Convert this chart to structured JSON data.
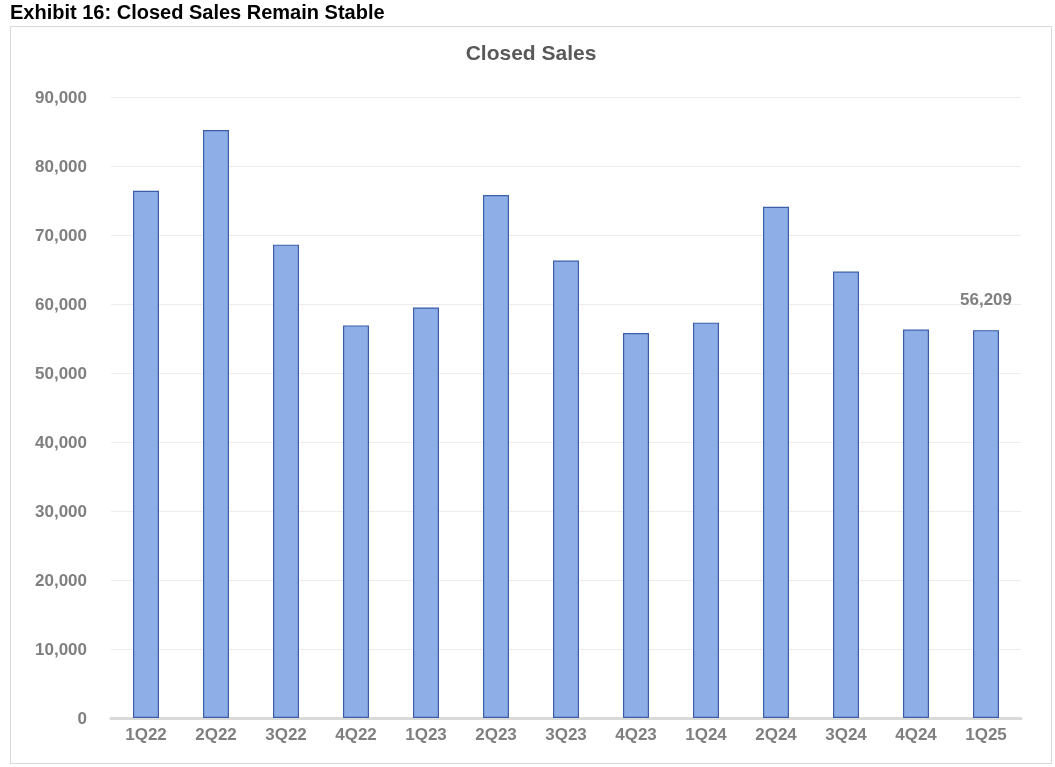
{
  "chart_data": {
    "type": "bar",
    "title": "Exhibit 16: Closed Sales Remain Stable",
    "subtitle": "Closed Sales",
    "categories": [
      "1Q22",
      "2Q22",
      "3Q22",
      "4Q22",
      "1Q23",
      "2Q23",
      "3Q23",
      "4Q23",
      "1Q24",
      "2Q24",
      "3Q24",
      "4Q24",
      "1Q25"
    ],
    "values": [
      76400,
      85200,
      68600,
      56900,
      59500,
      75800,
      66300,
      55800,
      57300,
      74100,
      64700,
      56300,
      56209
    ],
    "value_labels": [
      null,
      null,
      null,
      null,
      null,
      null,
      null,
      null,
      null,
      null,
      null,
      null,
      "56,209"
    ],
    "color": "#8eaee8",
    "ylim": [
      0,
      90000
    ],
    "yticks": [
      {
        "value": 0,
        "label": "0"
      },
      {
        "value": 10000,
        "label": "10,000"
      },
      {
        "value": 20000,
        "label": "20,000"
      },
      {
        "value": 30000,
        "label": "30,000"
      },
      {
        "value": 40000,
        "label": "40,000"
      },
      {
        "value": 50000,
        "label": "50,000"
      },
      {
        "value": 60000,
        "label": "60,000"
      },
      {
        "value": 70000,
        "label": "70,000"
      },
      {
        "value": 80000,
        "label": "80,000"
      },
      {
        "value": 90000,
        "label": "90,000"
      }
    ],
    "grid": "y"
  }
}
